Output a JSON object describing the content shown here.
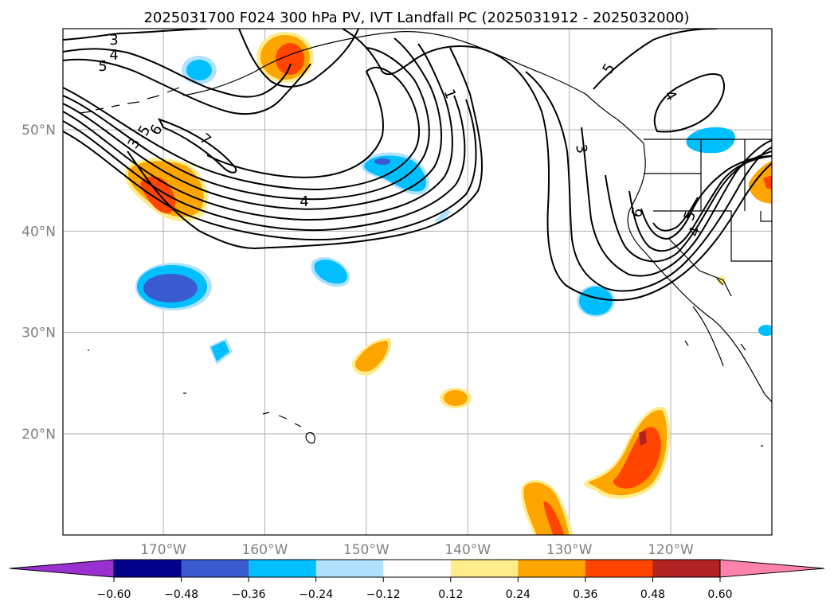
{
  "title": "2025031700 F024 300 hPa PV, IVT Landfall PC (2025031912 - 2025032000)",
  "map": {
    "lon_range": [
      -180,
      -110
    ],
    "lat_range": [
      10,
      60
    ],
    "lon_ticks": [
      {
        "value": -170,
        "label": "170°W"
      },
      {
        "value": -160,
        "label": "160°W"
      },
      {
        "value": -150,
        "label": "150°W"
      },
      {
        "value": -140,
        "label": "140°W"
      },
      {
        "value": -130,
        "label": "130°W"
      },
      {
        "value": -120,
        "label": "120°W"
      }
    ],
    "lat_ticks": [
      {
        "value": 50,
        "label": "50°N"
      },
      {
        "value": 40,
        "label": "40°N"
      },
      {
        "value": 30,
        "label": "30°N"
      },
      {
        "value": 20,
        "label": "20°N"
      }
    ],
    "grid": true,
    "contour_labels": [
      "3",
      "4",
      "5",
      "3",
      "5",
      "6",
      "7",
      "4",
      "1",
      "3",
      "5",
      "4",
      "6",
      "5",
      "4"
    ]
  },
  "colorbar": {
    "ticks": [
      "−0.60",
      "−0.48",
      "−0.36",
      "−0.24",
      "−0.12",
      "0.12",
      "0.24",
      "0.36",
      "0.48",
      "0.60"
    ],
    "colors": {
      "under": "#9b30d0",
      "bins": [
        "#00008b",
        "#3a5bd0",
        "#00bfff",
        "#b0e2ff",
        "#ffffff",
        "#ffec8b",
        "#ffa500",
        "#ff4500",
        "#b22222"
      ],
      "over": "#ff82ab"
    }
  },
  "colors": {
    "neg_dark": "#3a5bd0",
    "neg_mid": "#00bfff",
    "neg_light": "#b0e2ff",
    "pos_light": "#ffec8b",
    "pos_mid": "#ffa500",
    "pos_strong": "#ff4500",
    "pos_max": "#b22222",
    "contour": "#000000",
    "grid": "#b0b0b0"
  }
}
